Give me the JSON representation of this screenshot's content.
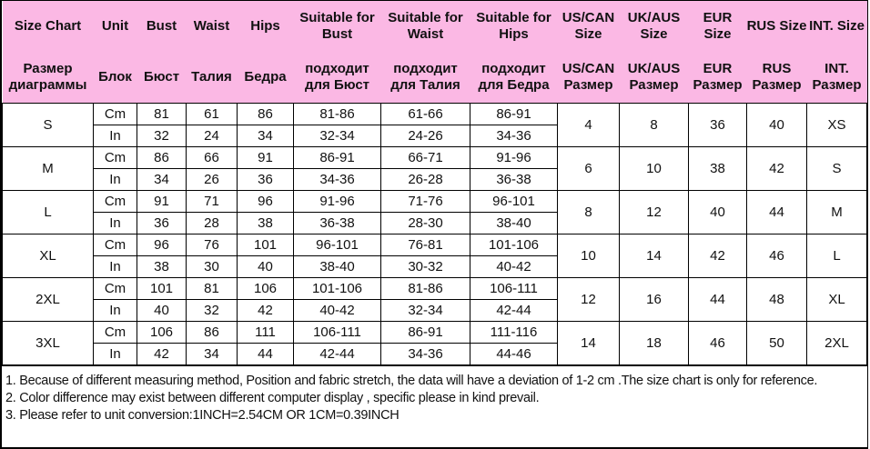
{
  "header_en": [
    "Size Chart",
    "Unit",
    "Bust",
    "Waist",
    "Hips",
    "Suitable for Bust",
    "Suitable for Waist",
    "Suitable for Hips",
    "US/CAN Size",
    "UK/AUS Size",
    "EUR Size",
    "RUS Size",
    "INT. Size"
  ],
  "header_ru": [
    "Размер диаграммы",
    "Блок",
    "Бюст",
    "Талия",
    "Бедра",
    "подходит для Бюст",
    "подходит для Талия",
    "подходит для Бедра",
    "US/CAN Размер",
    "UK/AUS Размер",
    "EUR Размер",
    "RUS Размер",
    "INT. Размер"
  ],
  "sizes": [
    {
      "size": "S",
      "cm": [
        "Cm",
        "81",
        "61",
        "86",
        "81-86",
        "61-66",
        "86-91"
      ],
      "in": [
        "In",
        "32",
        "24",
        "34",
        "32-34",
        "24-26",
        "34-36"
      ],
      "us": "4",
      "uk": "8",
      "eur": "36",
      "rus": "40",
      "int": "XS"
    },
    {
      "size": "M",
      "cm": [
        "Cm",
        "86",
        "66",
        "91",
        "86-91",
        "66-71",
        "91-96"
      ],
      "in": [
        "In",
        "34",
        "26",
        "36",
        "34-36",
        "26-28",
        "36-38"
      ],
      "us": "6",
      "uk": "10",
      "eur": "38",
      "rus": "42",
      "int": "S"
    },
    {
      "size": "L",
      "cm": [
        "Cm",
        "91",
        "71",
        "96",
        "91-96",
        "71-76",
        "96-101"
      ],
      "in": [
        "In",
        "36",
        "28",
        "38",
        "36-38",
        "28-30",
        "38-40"
      ],
      "us": "8",
      "uk": "12",
      "eur": "40",
      "rus": "44",
      "int": "M"
    },
    {
      "size": "XL",
      "cm": [
        "Cm",
        "96",
        "76",
        "101",
        "96-101",
        "76-81",
        "101-106"
      ],
      "in": [
        "In",
        "38",
        "30",
        "40",
        "38-40",
        "30-32",
        "40-42"
      ],
      "us": "10",
      "uk": "14",
      "eur": "42",
      "rus": "46",
      "int": "L"
    },
    {
      "size": "2XL",
      "cm": [
        "Cm",
        "101",
        "81",
        "106",
        "101-106",
        "81-86",
        "106-111"
      ],
      "in": [
        "In",
        "40",
        "32",
        "42",
        "40-42",
        "32-34",
        "42-44"
      ],
      "us": "12",
      "uk": "16",
      "eur": "44",
      "rus": "48",
      "int": "XL"
    },
    {
      "size": "3XL",
      "cm": [
        "Cm",
        "106",
        "86",
        "111",
        "106-111",
        "86-91",
        "111-116"
      ],
      "in": [
        "In",
        "42",
        "34",
        "44",
        "42-44",
        "34-36",
        "44-46"
      ],
      "us": "14",
      "uk": "18",
      "eur": "46",
      "rus": "50",
      "int": "2XL"
    }
  ],
  "notes": [
    "1. Because of different measuring method, Position and fabric stretch, the data will have a deviation of 1-2 cm .The size chart is only for reference.",
    "2. Color difference may exist between different computer display , specific please in kind prevail.",
    "3. Please refer to unit conversion:1INCH=2.54CM OR 1CM=0.39INCH"
  ],
  "colors": {
    "header_bg": "#fbb8e4",
    "border": "#000000"
  }
}
